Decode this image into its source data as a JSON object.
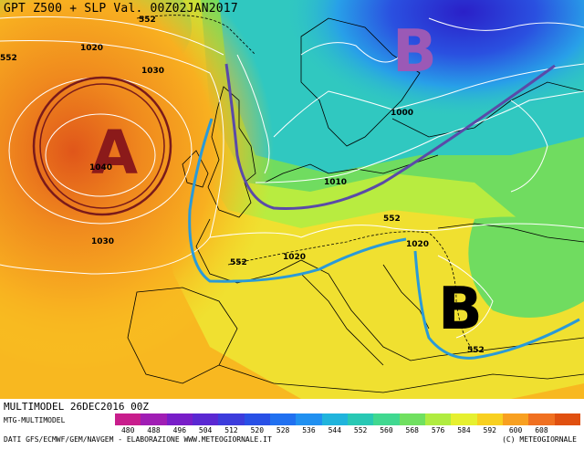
{
  "title": "GPT Z500 + SLP Val. 00Z02JAN2017",
  "footer": {
    "model_run": "MULTIMODEL 26DEC2016 00Z",
    "model_name": "MTG-MULTIMODEL",
    "sources": "DATI GFS/ECMWF/GEM/NAVGEM - ELABORAZIONE WWW.METEOGIORNALE.IT",
    "copyright": "(C) METEOGIORNALE"
  },
  "color_scale": {
    "values": [
      "480",
      "488",
      "496",
      "504",
      "512",
      "520",
      "528",
      "536",
      "544",
      "552",
      "560",
      "568",
      "576",
      "584",
      "592",
      "600",
      "608"
    ],
    "colors": [
      "#c81e8c",
      "#a01eb4",
      "#781ec8",
      "#5a28d2",
      "#3c3cdc",
      "#2850e6",
      "#2070f0",
      "#2090f0",
      "#20b4dc",
      "#28c8b4",
      "#40d890",
      "#70e060",
      "#b0ec40",
      "#e6f030",
      "#f8d020",
      "#f8a020",
      "#f07020",
      "#e05010"
    ]
  },
  "pressure_centers": [
    {
      "label": "A",
      "color": "#8b1a1a"
    },
    {
      "label": "B",
      "color": "#9b59b6"
    },
    {
      "label": "B",
      "color": "#000000"
    }
  ],
  "isobar_labels": [
    "1020",
    "1030",
    "1040",
    "1030",
    "1020",
    "1010",
    "1000",
    "1020",
    "552",
    "552",
    "552",
    "552",
    "552"
  ]
}
